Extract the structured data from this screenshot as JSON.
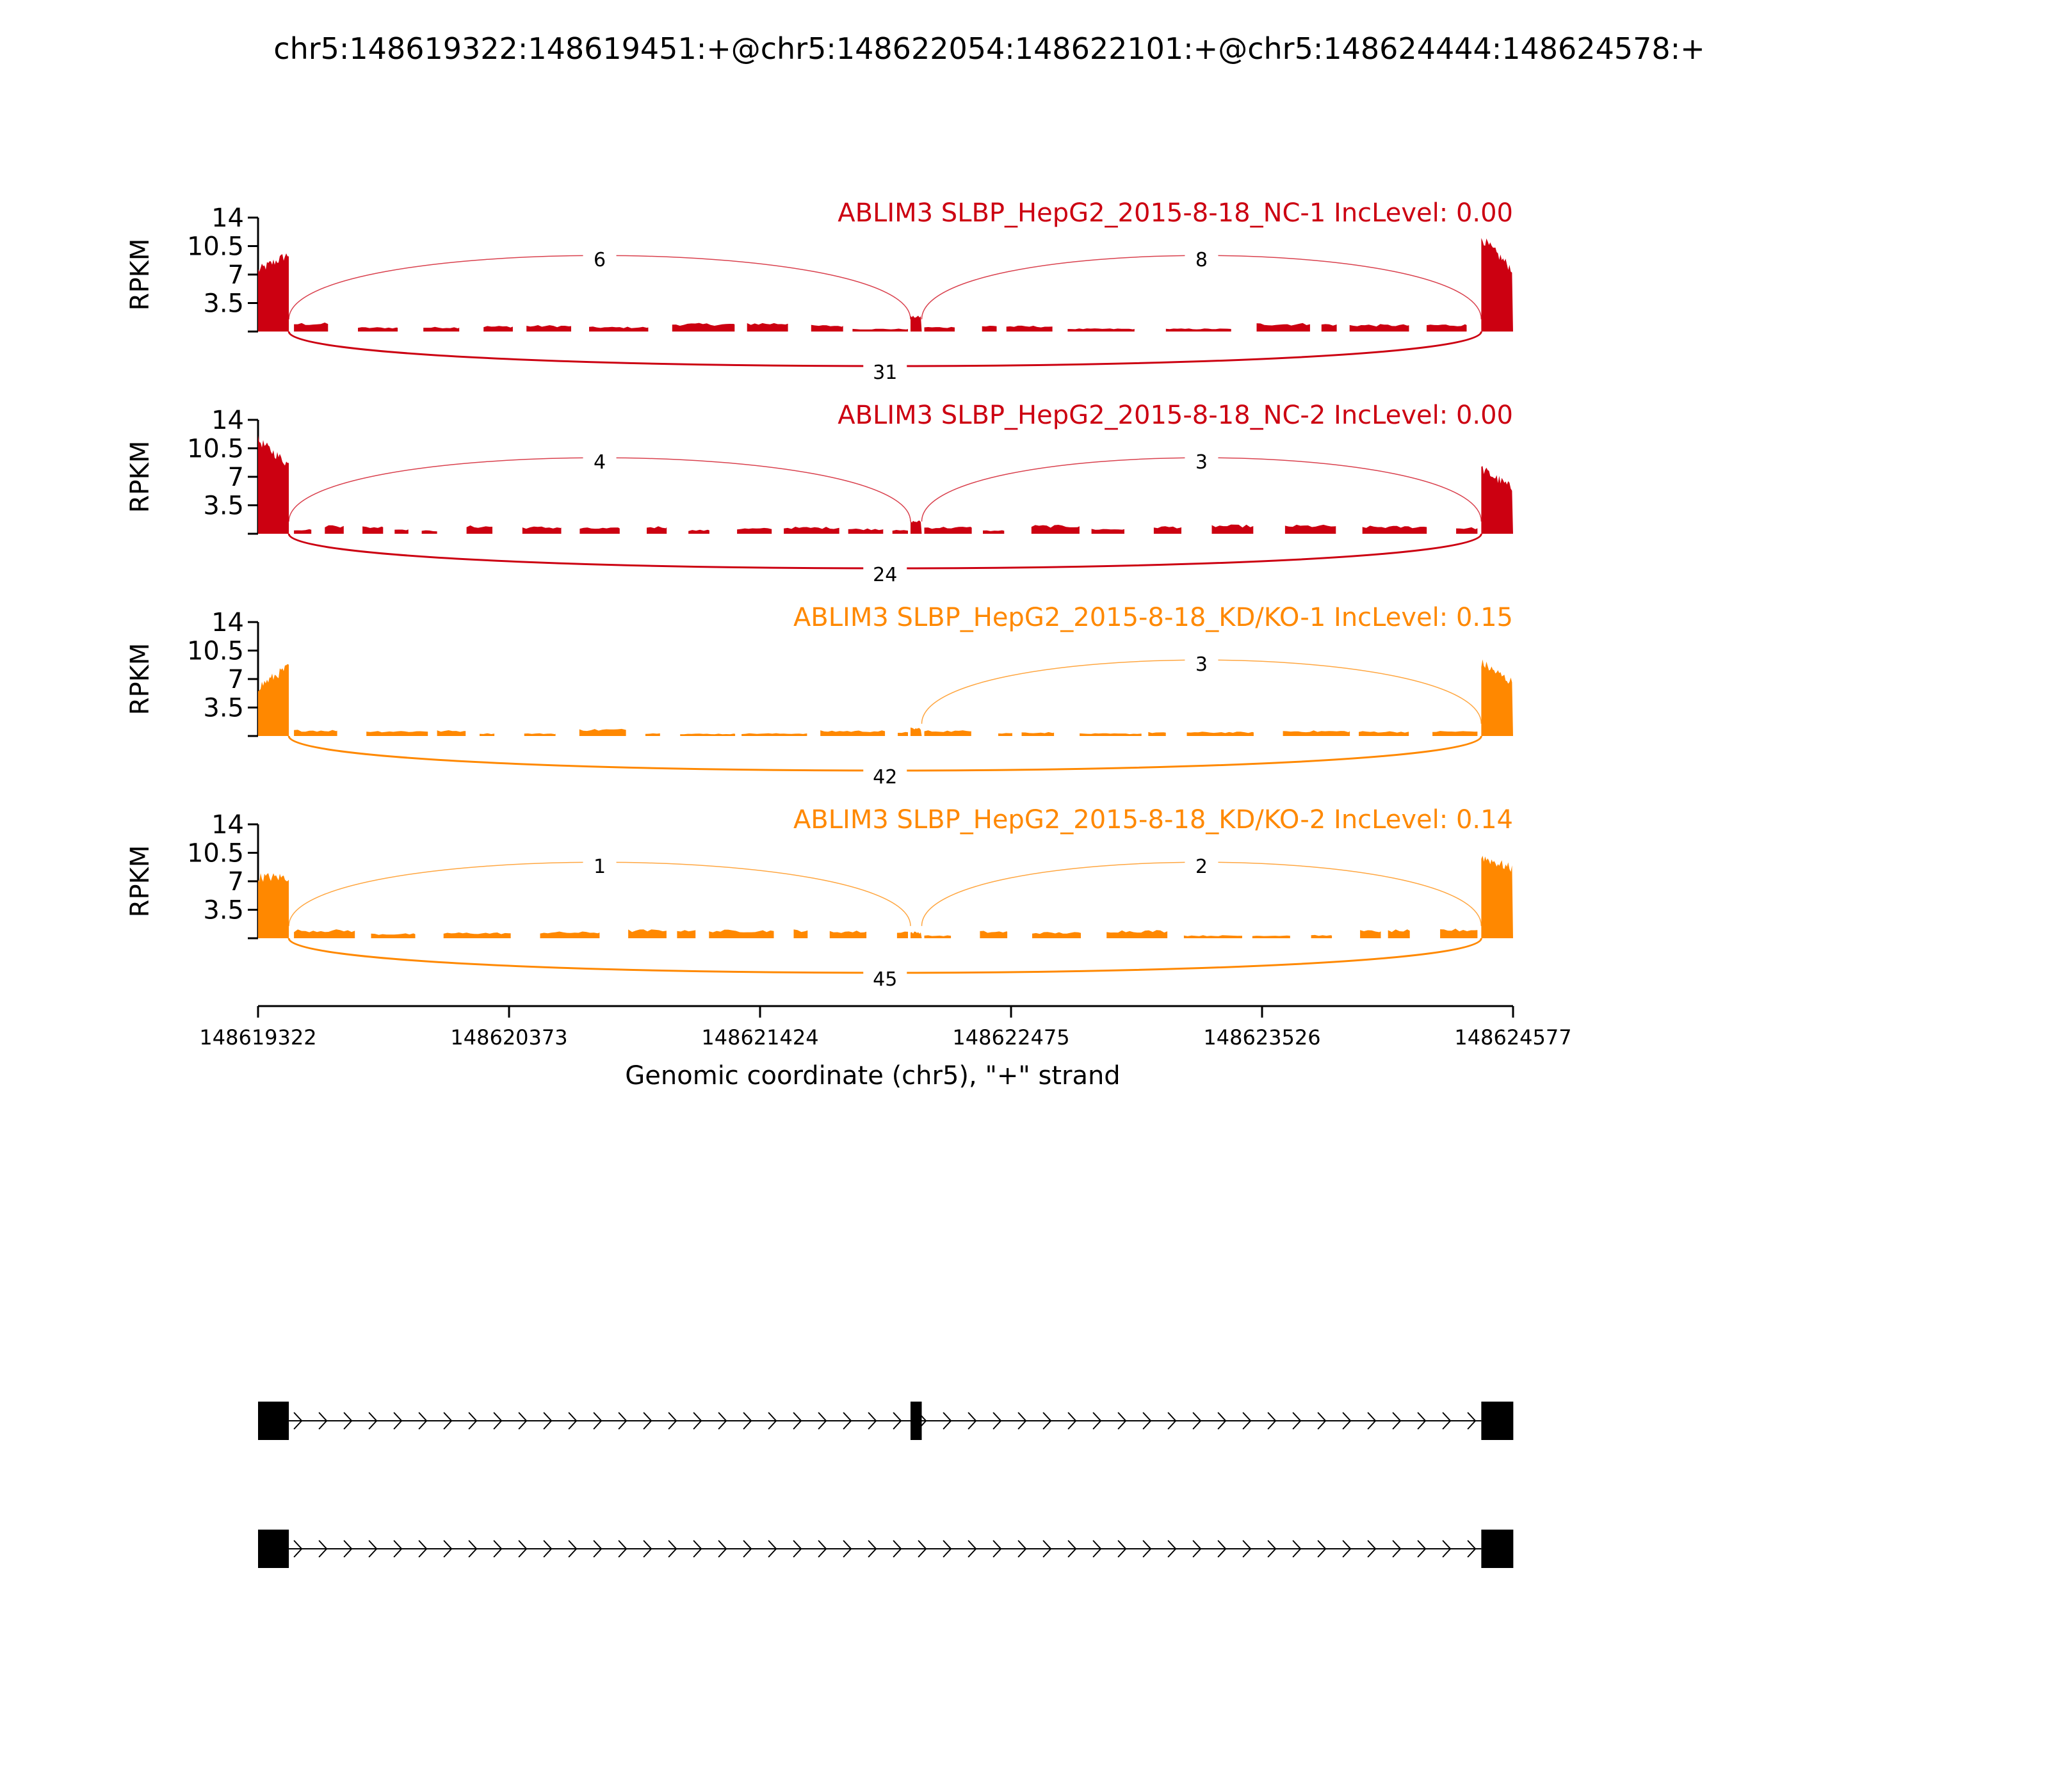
{
  "title": "chr5:148619322:148619451:+@chr5:148622054:148622101:+@chr5:148624444:148624578:+",
  "chart_data": {
    "type": "area",
    "title": "chr5:148619322:148619451:+@chr5:148622054:148622101:+@chr5:148624444:148624578:+",
    "xlabel": "Genomic coordinate (chr5), \"+\" strand",
    "ylabel": "RPKM",
    "xlim": [
      148619322,
      148624577
    ],
    "x_ticks": [
      "148619322",
      "148620373",
      "148621424",
      "148622475",
      "148623526",
      "148624577"
    ],
    "ylim": [
      0,
      14
    ],
    "y_ticks": [
      "14",
      "10.5",
      "7",
      "3.5"
    ],
    "exons": [
      {
        "start": 148619322,
        "end": 148619451
      },
      {
        "start": 148622054,
        "end": 148622101
      },
      {
        "start": 148624444,
        "end": 148624578
      }
    ],
    "series": [
      {
        "name": "ABLIM3 SLBP_HepG2_2015-8-18_NC-1 IncLevel: 0.00",
        "color": "#cc0011",
        "exon_levels": [
          [
            7.5,
            9.5
          ],
          [
            1.8,
            1.8
          ],
          [
            11.5,
            7.5
          ]
        ],
        "intron_level": 0.6,
        "junctions": {
          "inc_left": "6",
          "inc_right": "8",
          "skip": "31"
        }
      },
      {
        "name": "ABLIM3 SLBP_HepG2_2015-8-18_NC-2 IncLevel: 0.00",
        "color": "#cc0011",
        "exon_levels": [
          [
            11.5,
            8.5
          ],
          [
            1.5,
            1.5
          ],
          [
            8.0,
            5.5
          ]
        ],
        "intron_level": 0.6,
        "junctions": {
          "inc_left": "4",
          "inc_right": "3",
          "skip": "24"
        }
      },
      {
        "name": "ABLIM3 SLBP_HepG2_2015-8-18_KD/KO-1 IncLevel: 0.15",
        "color": "#ff8800",
        "exon_levels": [
          [
            6.0,
            8.5
          ],
          [
            0.9,
            0.9
          ],
          [
            9.0,
            6.5
          ]
        ],
        "intron_level": 0.5,
        "junctions": {
          "inc_left": "",
          "inc_right": "3",
          "skip": "42"
        }
      },
      {
        "name": "ABLIM3 SLBP_HepG2_2015-8-18_KD/KO-2 IncLevel: 0.14",
        "color": "#ff8800",
        "exon_levels": [
          [
            7.5,
            7.5
          ],
          [
            0.7,
            0.7
          ],
          [
            10.0,
            8.5
          ]
        ],
        "intron_level": 0.6,
        "junctions": {
          "inc_left": "1",
          "inc_right": "2",
          "skip": "45"
        }
      }
    ],
    "isoforms": [
      {
        "exons": [
          0,
          1,
          2
        ]
      },
      {
        "exons": [
          0,
          2
        ]
      }
    ]
  }
}
